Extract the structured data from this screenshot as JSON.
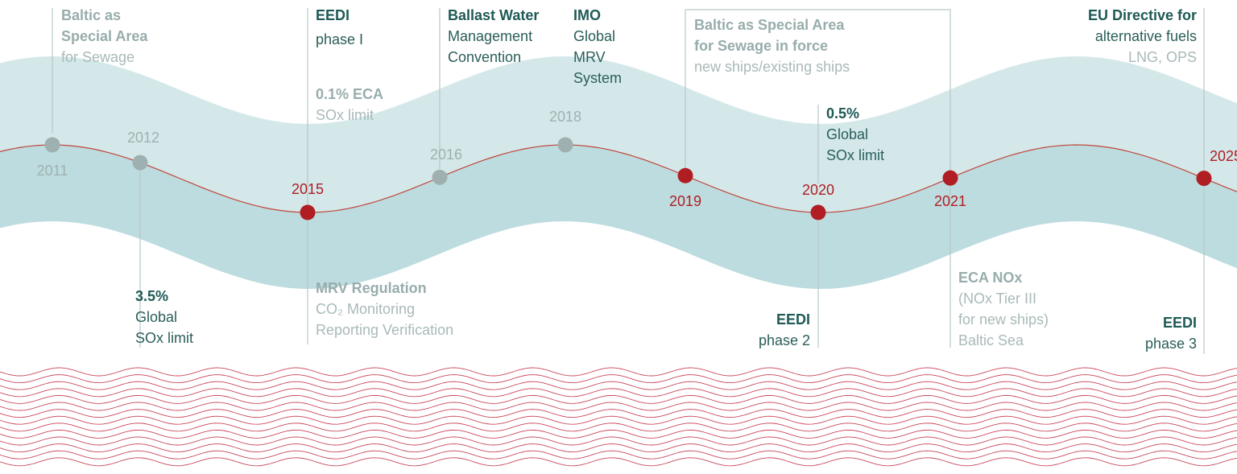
{
  "milestones": [
    {
      "year": "2011",
      "color": "#9fb0b0"
    },
    {
      "year": "2012",
      "color": "#9fb0b0"
    },
    {
      "year": "2015",
      "color": "#b01e23"
    },
    {
      "year": "2016",
      "color": "#9fb0b0"
    },
    {
      "year": "2018",
      "color": "#9fb0b0"
    },
    {
      "year": "2019",
      "color": "#b01e23"
    },
    {
      "year": "2020",
      "color": "#b01e23"
    },
    {
      "year": "2021",
      "color": "#b01e23"
    },
    {
      "year": "2025",
      "color": "#b01e23"
    }
  ],
  "notes": [
    {
      "lines": [
        "Baltic as",
        "Special Area",
        "for Sewage"
      ]
    },
    {
      "lines": [
        "3.5%",
        "Global",
        "SOx limit"
      ]
    },
    {
      "lines": [
        "EEDI",
        "phase I"
      ]
    },
    {
      "lines": [
        "0.1% ECA",
        "SOx limit"
      ]
    },
    {
      "lines": [
        "MRV Regulation",
        "CO₂ Monitoring",
        "Reporting Verification"
      ]
    },
    {
      "lines": [
        "Ballast Water",
        "Management",
        "Convention"
      ]
    },
    {
      "lines": [
        "IMO",
        "Global",
        "MRV",
        "System"
      ]
    },
    {
      "lines": [
        "Baltic as Special Area",
        "for Sewage in force",
        "new ships/existing ships"
      ]
    },
    {
      "lines": [
        "0.5%",
        "Global",
        "SOx limit"
      ]
    },
    {
      "lines": [
        "EEDI",
        "phase 2"
      ]
    },
    {
      "lines": [
        "ECA NOx",
        "(NOx Tier III",
        "for new ships)",
        "Baltic Sea"
      ]
    },
    {
      "lines": [
        "EU Directive for",
        "alternative fuels",
        "LNG, OPS"
      ]
    },
    {
      "lines": [
        "EEDI",
        "phase 3"
      ]
    }
  ]
}
